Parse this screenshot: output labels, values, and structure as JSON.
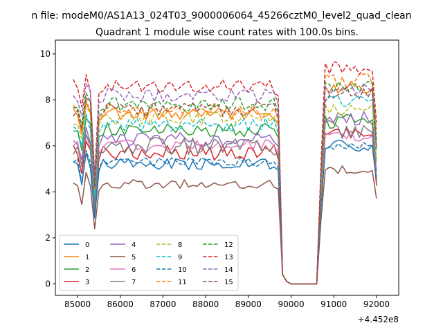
{
  "figure": {
    "suptitle": "n file: modeM0/AS1A13_024T03_9000006064_45266cztM0_level2_quad_clean",
    "title": "Quadrant 1 module wise count rates with 100.0s bins.",
    "offset_text": "+4.452e8"
  },
  "chart_data": {
    "type": "line",
    "title": "Quadrant 1 module wise count rates with 100.0s bins.",
    "xlabel": "",
    "ylabel": "",
    "x_offset": 445200000,
    "xlim": [
      84480,
      92520
    ],
    "ylim": [
      -0.5,
      10.6
    ],
    "x_ticks": [
      85000,
      86000,
      87000,
      88000,
      89000,
      90000,
      91000,
      92000
    ],
    "x_tick_labels": [
      "85000",
      "86000",
      "87000",
      "88000",
      "89000",
      "90000",
      "91000",
      "92000"
    ],
    "y_ticks": [
      0,
      2,
      4,
      6,
      8,
      10
    ],
    "y_tick_labels": [
      "0",
      "2",
      "4",
      "6",
      "8",
      "10"
    ],
    "grid": false,
    "legend": {
      "placement": "lower-left",
      "ncol": 4
    },
    "series": [
      {
        "name": "0",
        "color": "#1f77b4",
        "dash": "solid",
        "level1": 5.2,
        "level2": 6.0,
        "amp": 0.25
      },
      {
        "name": "1",
        "color": "#ff7f0e",
        "dash": "solid",
        "level1": 7.4,
        "level2": 8.5,
        "amp": 0.3
      },
      {
        "name": "2",
        "color": "#2ca02c",
        "dash": "solid",
        "level1": 6.7,
        "level2": 7.1,
        "amp": 0.35
      },
      {
        "name": "3",
        "color": "#d62728",
        "dash": "solid",
        "level1": 5.7,
        "level2": 6.4,
        "amp": 0.35
      },
      {
        "name": "4",
        "color": "#9467bd",
        "dash": "solid",
        "level1": 6.3,
        "level2": 7.2,
        "amp": 0.3
      },
      {
        "name": "5",
        "color": "#8c564b",
        "dash": "solid",
        "level1": 4.35,
        "level2": 5.0,
        "amp": 0.2
      },
      {
        "name": "6",
        "color": "#e377c2",
        "dash": "solid",
        "level1": 6.0,
        "level2": 6.5,
        "amp": 0.3
      },
      {
        "name": "7",
        "color": "#7f7f7f",
        "dash": "solid",
        "level1": 6.0,
        "level2": 6.7,
        "amp": 0.4
      },
      {
        "name": "8",
        "color": "#bcbd22",
        "dash": "dashed",
        "level1": 7.2,
        "level2": 7.5,
        "amp": 0.3
      },
      {
        "name": "9",
        "color": "#17becf",
        "dash": "dashed",
        "level1": 6.9,
        "level2": 7.9,
        "amp": 0.3
      },
      {
        "name": "10",
        "color": "#1f77b4",
        "dash": "dashed",
        "level1": 5.3,
        "level2": 6.0,
        "amp": 0.2
      },
      {
        "name": "11",
        "color": "#ff7f0e",
        "dash": "dashed",
        "level1": 7.5,
        "level2": 8.8,
        "amp": 0.35
      },
      {
        "name": "12",
        "color": "#2ca02c",
        "dash": "dashed",
        "level1": 7.8,
        "level2": 8.6,
        "amp": 0.3
      },
      {
        "name": "13",
        "color": "#d62728",
        "dash": "dashed",
        "level1": 8.6,
        "level2": 9.4,
        "amp": 0.3
      },
      {
        "name": "14",
        "color": "#9467bd",
        "dash": "dashed",
        "level1": 8.2,
        "level2": 8.5,
        "amp": 0.3
      },
      {
        "name": "15",
        "color": "#8c564b",
        "dash": "dashed",
        "level1": 7.6,
        "level2": 8.3,
        "amp": 0.35
      }
    ]
  }
}
